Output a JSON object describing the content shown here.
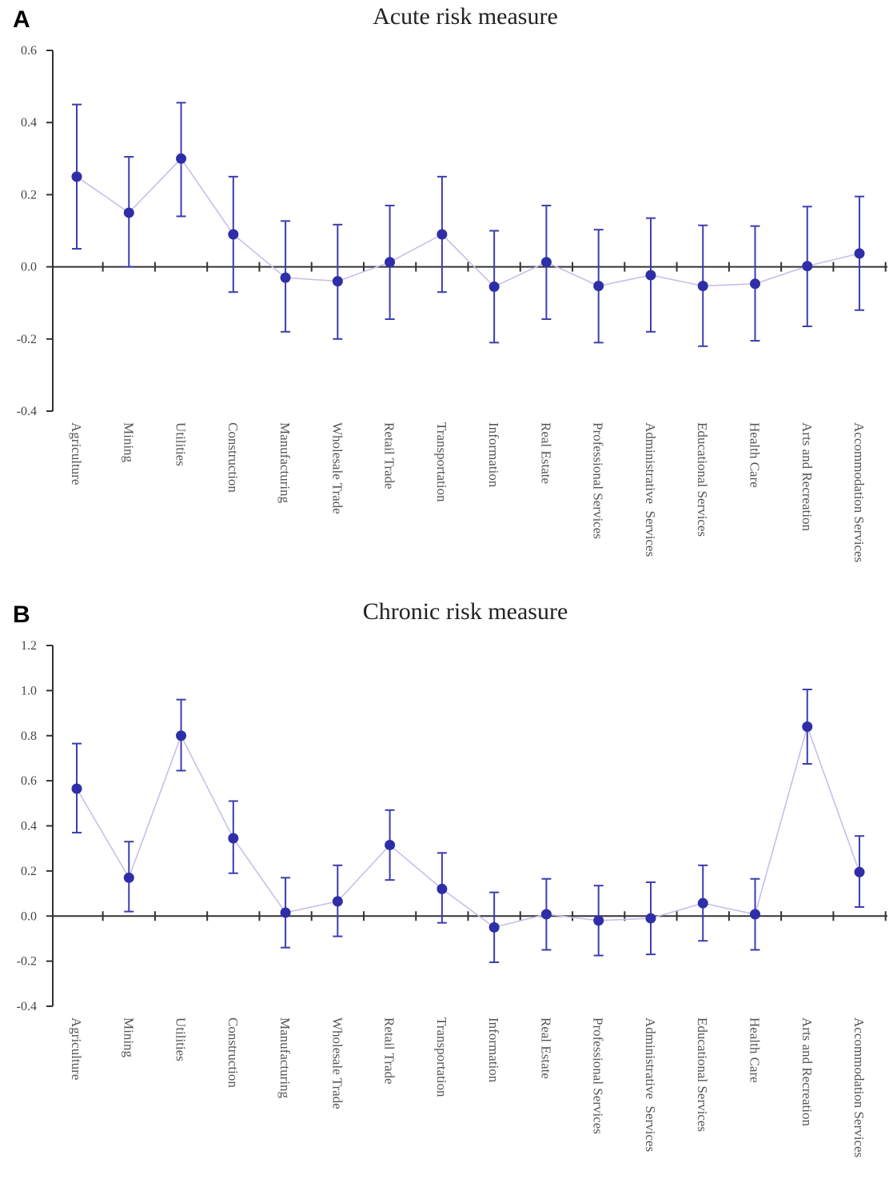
{
  "panels": {
    "a": {
      "letter": "A"
    },
    "b": {
      "letter": "B"
    }
  },
  "colors": {
    "points": "#2e2ea8",
    "errorbars": "#3d3dae",
    "line": "#c8bfe8",
    "axis": "#333333"
  },
  "chart_data": [
    {
      "type": "line",
      "title": "Acute risk measure",
      "xlabel": "",
      "ylabel": "",
      "ylim": [
        -0.4,
        0.6
      ],
      "yticks": [
        -0.4,
        -0.2,
        0.0,
        0.2,
        0.4,
        0.6
      ],
      "ytick_labels": [
        "-0.4",
        "-0.2",
        "0.0",
        "0.2",
        "0.4",
        "0.6"
      ],
      "categories": [
        "Agriculture",
        "Mining",
        "Utilities",
        "Construction",
        "Manufacturing",
        "Wholesale Trade",
        "Retail Trade",
        "Transportation",
        "Information",
        "Real Estate",
        "Professional Services",
        "Administrative  Services",
        "Educational Services",
        "Health Care",
        "Arts and Recreation",
        "Accommodation Services"
      ],
      "values": [
        0.25,
        0.15,
        0.3,
        0.09,
        -0.03,
        -0.04,
        0.013,
        0.09,
        -0.055,
        0.013,
        -0.053,
        -0.023,
        -0.053,
        -0.047,
        0.002,
        0.037
      ],
      "lower": [
        0.05,
        0.0,
        0.14,
        -0.07,
        -0.18,
        -0.2,
        -0.145,
        -0.07,
        -0.21,
        -0.145,
        -0.21,
        -0.18,
        -0.22,
        -0.205,
        -0.165,
        -0.12
      ],
      "upper": [
        0.45,
        0.305,
        0.455,
        0.25,
        0.127,
        0.117,
        0.17,
        0.25,
        0.1,
        0.17,
        0.103,
        0.135,
        0.115,
        0.113,
        0.167,
        0.195
      ]
    },
    {
      "type": "line",
      "title": "Chronic risk measure",
      "xlabel": "",
      "ylabel": "",
      "ylim": [
        -0.4,
        1.2
      ],
      "yticks": [
        -0.4,
        -0.2,
        0.0,
        0.2,
        0.4,
        0.6,
        0.8,
        1.0,
        1.2
      ],
      "ytick_labels": [
        "-0.4",
        "-0.2",
        "0.0",
        "0.2",
        "0.4",
        "0.6",
        "0.8",
        "1.0",
        "1.2"
      ],
      "categories": [
        "Agriculture",
        "Mining",
        "Utilities",
        "Construction",
        "Manufacturing",
        "Wholesale Trade",
        "Retail Trade",
        "Transportation",
        "Information",
        "Real Estate",
        "Professional Services",
        "Administrative  Services",
        "Educational Services",
        "Health Care",
        "Arts and Recreation",
        "Accommodation Services"
      ],
      "values": [
        0.565,
        0.17,
        0.8,
        0.345,
        0.015,
        0.065,
        0.315,
        0.12,
        -0.05,
        0.008,
        -0.02,
        -0.01,
        0.057,
        0.008,
        0.84,
        0.195
      ],
      "lower": [
        0.37,
        0.02,
        0.645,
        0.19,
        -0.14,
        -0.09,
        0.16,
        -0.03,
        -0.205,
        -0.15,
        -0.175,
        -0.17,
        -0.11,
        -0.15,
        0.675,
        0.04
      ],
      "upper": [
        0.765,
        0.33,
        0.96,
        0.51,
        0.17,
        0.225,
        0.47,
        0.28,
        0.105,
        0.165,
        0.135,
        0.15,
        0.225,
        0.165,
        1.005,
        0.355
      ]
    }
  ]
}
